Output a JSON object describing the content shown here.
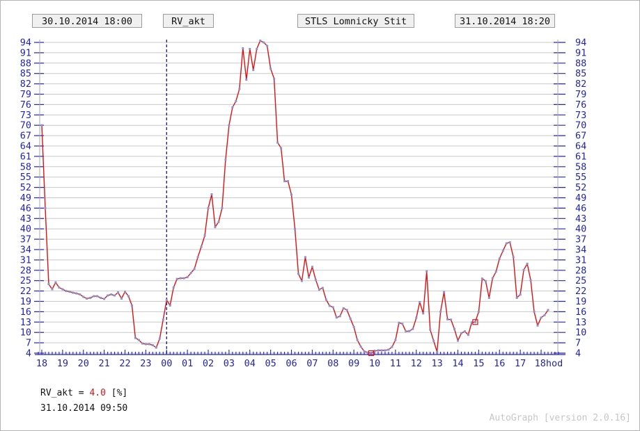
{
  "header": {
    "start_datetime": "30.10.2014 18:00",
    "series_label": "RV_akt",
    "station": "STLS Lomnicky Stit",
    "end_datetime": "31.10.2014 18:20"
  },
  "readout": {
    "prefix": "RV_akt = ",
    "value": "4.0",
    "suffix": " [%]",
    "timestamp": "31.10.2014 09:50"
  },
  "footer": {
    "credit": "AutoGraph [version 2.0.16]"
  },
  "colors": {
    "axis_blue": "#2222bb",
    "label_blue": "#2222bb",
    "grid_gray": "#c9c9c9",
    "axis_gray": "#a8a8a8",
    "curve_red": "#dd1111",
    "point_blue": "#8992cf",
    "marker_red": "#dd1111",
    "midnight_navy": "#000080"
  },
  "chart_data": {
    "type": "line",
    "title": "STLS Lomnicky Stit",
    "series_name": "RV_akt",
    "unit": "%",
    "xlabel": "hod",
    "ylabel": "",
    "ylim": [
      4,
      94
    ],
    "ytick_step": 3,
    "grid": true,
    "x_hour_labels": [
      "18",
      "19",
      "20",
      "21",
      "22",
      "23",
      "00",
      "01",
      "02",
      "03",
      "04",
      "05",
      "06",
      "07",
      "08",
      "09",
      "10",
      "11",
      "12",
      "13",
      "14",
      "15",
      "16",
      "17",
      "18hod"
    ],
    "midnight_line_hour_offset": 6,
    "start_time": "30.10.2014 18:00",
    "end_time": "31.10.2014 18:20",
    "interval_minutes": 10,
    "values": [
      70,
      46,
      24,
      22.5,
      24.5,
      23,
      22.5,
      22,
      21.8,
      21.5,
      21.3,
      21,
      20.3,
      19.8,
      20,
      20.5,
      20.5,
      20,
      19.7,
      20.7,
      21,
      20.7,
      21.6,
      19.8,
      21.8,
      20.5,
      17.8,
      8.4,
      7.8,
      6.8,
      6.6,
      6.6,
      6.3,
      5.6,
      8.2,
      13.7,
      19.4,
      17.8,
      23,
      25.5,
      25.7,
      25.7,
      26,
      27.2,
      28.4,
      31.8,
      34.8,
      38,
      46,
      50,
      40.5,
      42,
      46,
      60,
      70,
      75.2,
      77,
      80.5,
      92.3,
      83.2,
      92.1,
      86,
      92.1,
      94.5,
      94,
      93,
      86.4,
      83.5,
      65,
      63.4,
      53.8,
      53.8,
      49.9,
      40,
      27,
      24.9,
      31.8,
      25.9,
      29,
      25.2,
      22.4,
      22.9,
      19.5,
      17.7,
      17.3,
      14.3,
      14.7,
      17,
      16.5,
      14,
      11.6,
      7.8,
      5.9,
      4.5,
      4.2,
      4,
      4.6,
      4.8,
      4.8,
      4.8,
      5,
      5.8,
      7.8,
      12.8,
      12.5,
      10.3,
      10.4,
      11,
      14.2,
      18.8,
      15.5,
      27.7,
      10.8,
      7.6,
      4.4,
      16,
      21.7,
      13.8,
      13.7,
      11,
      7.6,
      9.8,
      10.3,
      9.3,
      12.9,
      13,
      16,
      25.6,
      24.9,
      20,
      25.7,
      27.6,
      31.4,
      33.6,
      35.8,
      36.1,
      31.8,
      20,
      21,
      28.1,
      29.9,
      25.1,
      16,
      12,
      14.3,
      15,
      16.5
    ],
    "markers": [
      {
        "time": "31.10.2014 09:50",
        "value": 4.0,
        "index": 95
      },
      {
        "time": "31.10.2014 14:50",
        "value": 13,
        "index": 125
      }
    ]
  }
}
